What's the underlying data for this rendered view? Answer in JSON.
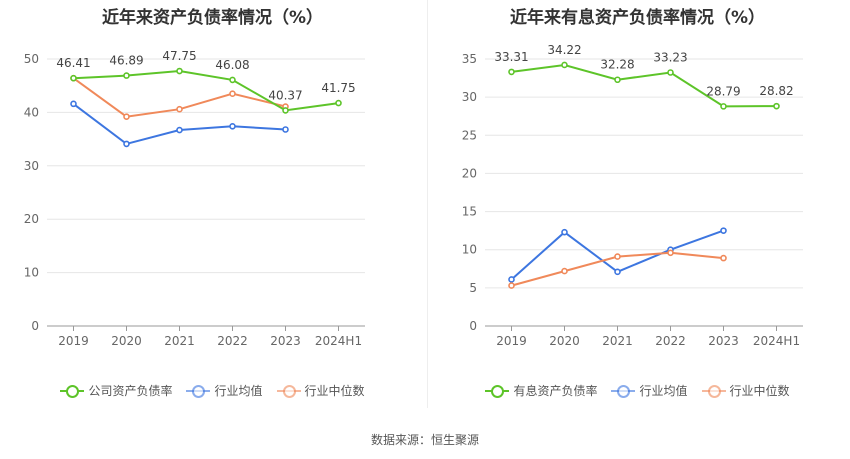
{
  "source_label": "数据来源：恒生聚源",
  "chart_data": [
    {
      "type": "line",
      "title": "近年来资产负债率情况（%）",
      "categories": [
        "2019",
        "2020",
        "2021",
        "2022",
        "2023",
        "2024H1"
      ],
      "yticks": [
        "0",
        "10",
        "20",
        "30",
        "40",
        "50"
      ],
      "ylim": [
        0,
        50
      ],
      "grid": true,
      "legend_position": "bottom",
      "series": [
        {
          "name": "公司资产负债率",
          "color": "#5dc429",
          "values": [
            46.41,
            46.89,
            47.75,
            46.08,
            40.37,
            41.75
          ],
          "labels": [
            "46.41",
            "46.89",
            "47.75",
            "46.08",
            "40.37",
            "41.75"
          ]
        },
        {
          "name": "行业均值",
          "color": "#3d76e0",
          "values": [
            41.6,
            34.1,
            36.7,
            37.4,
            36.8,
            null
          ],
          "labels": []
        },
        {
          "name": "行业中位数",
          "color": "#f0895a",
          "values": [
            46.4,
            39.2,
            40.6,
            43.5,
            41.1,
            null
          ],
          "labels": []
        }
      ]
    },
    {
      "type": "line",
      "title": "近年来有息资产负债率情况（%）",
      "categories": [
        "2019",
        "2020",
        "2021",
        "2022",
        "2023",
        "2024H1"
      ],
      "yticks": [
        "0",
        "5",
        "10",
        "15",
        "20",
        "25",
        "30",
        "35"
      ],
      "ylim": [
        0,
        35
      ],
      "grid": true,
      "legend_position": "bottom",
      "series": [
        {
          "name": "有息资产负债率",
          "color": "#5dc429",
          "values": [
            33.31,
            34.22,
            32.28,
            33.23,
            28.79,
            28.82
          ],
          "labels": [
            "33.31",
            "34.22",
            "32.28",
            "33.23",
            "28.79",
            "28.82"
          ]
        },
        {
          "name": "行业均值",
          "color": "#3d76e0",
          "values": [
            6.1,
            12.3,
            7.1,
            10.0,
            12.5,
            null
          ],
          "labels": []
        },
        {
          "name": "行业中位数",
          "color": "#f0895a",
          "values": [
            5.3,
            7.2,
            9.1,
            9.6,
            8.9,
            null
          ],
          "labels": []
        }
      ]
    }
  ]
}
